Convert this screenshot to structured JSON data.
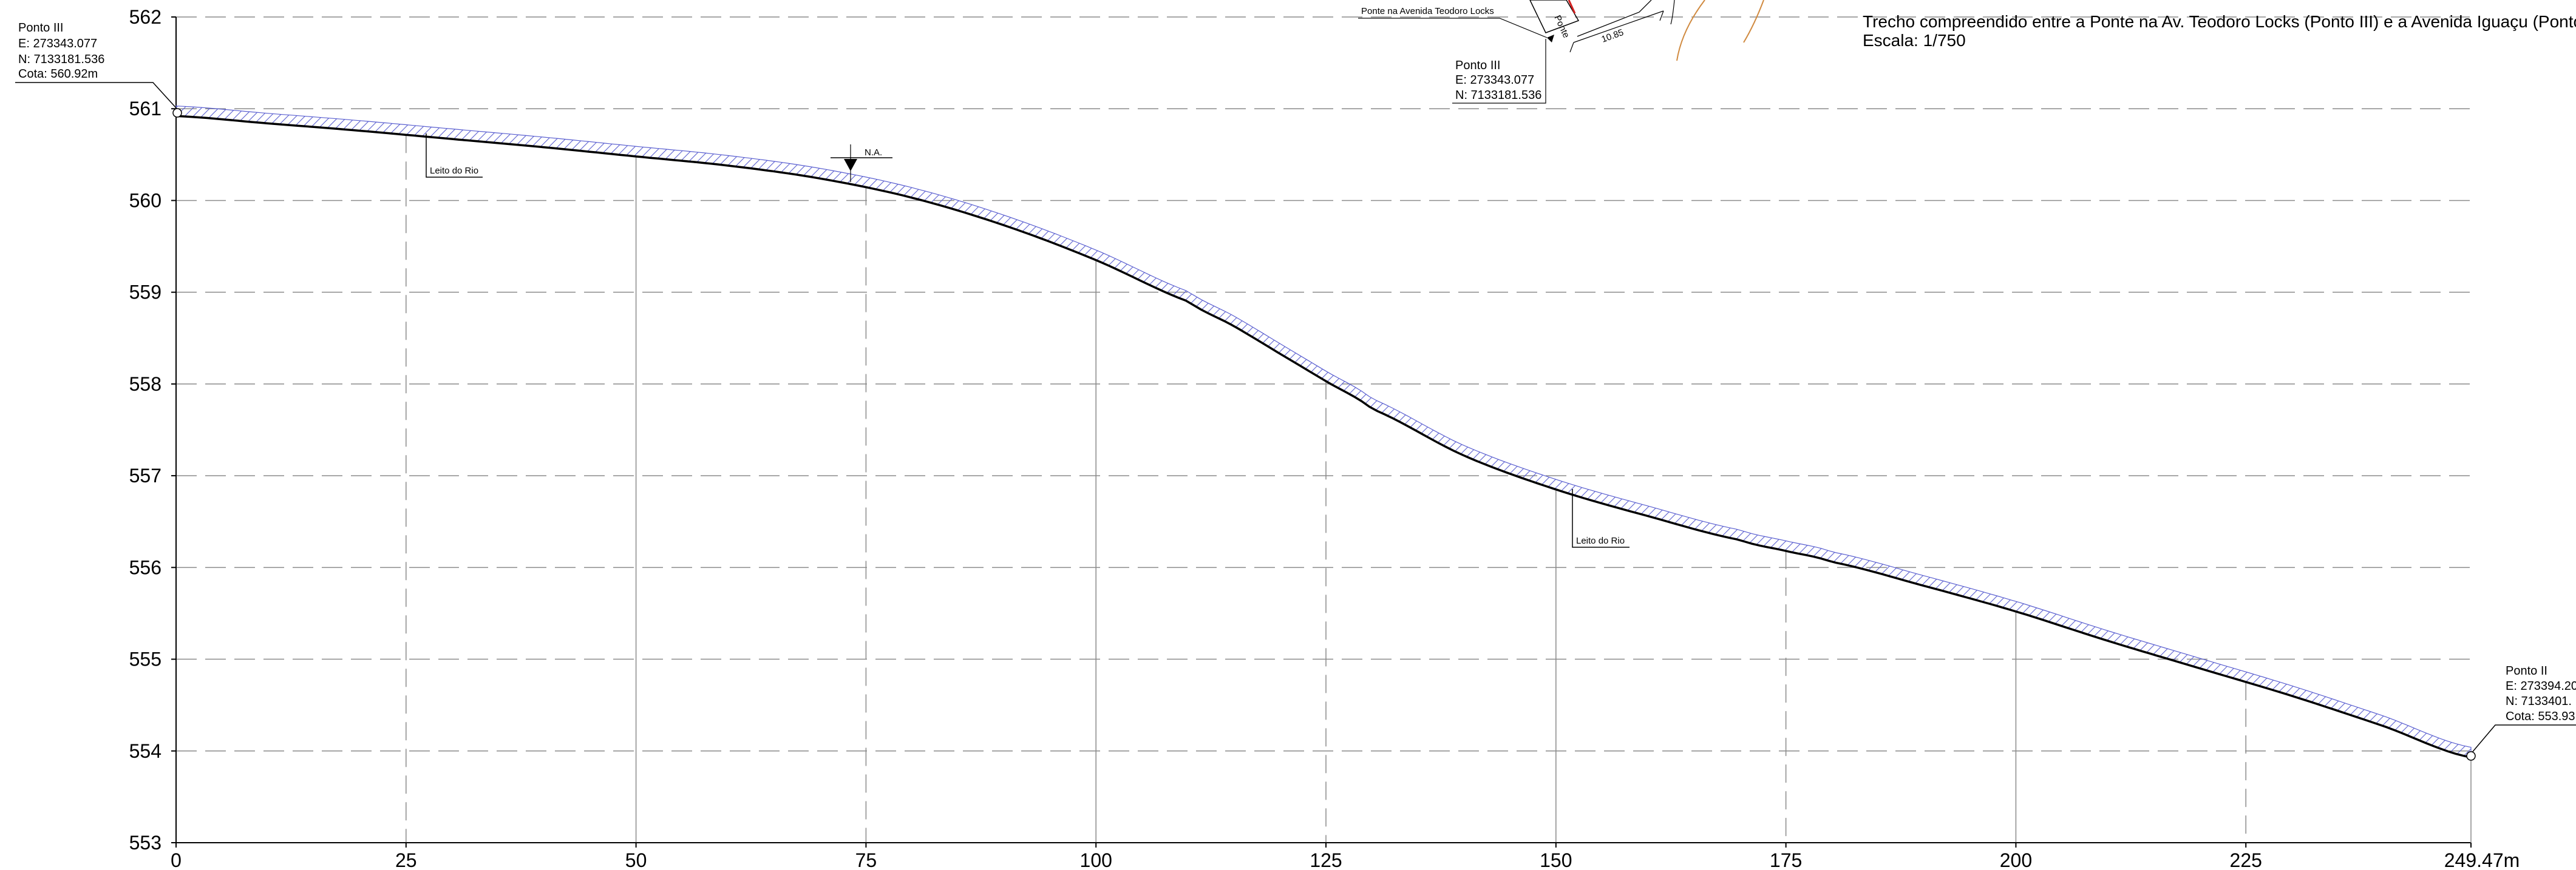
{
  "title": {
    "line1": "Trecho compreendido entre a Ponte na Av. Teodoro Locks (Ponto III) e a Avenida Iguaçu (Ponto II)",
    "line2": "Escala: 1/750"
  },
  "colors": {
    "profile_line": "#000000",
    "hatch": "#5a5fd0",
    "grid": "#8a8a8a",
    "sketch_red": "#d22020",
    "sketch_orange": "#d08a40"
  },
  "chart_data": {
    "type": "line",
    "title": "",
    "xlabel": "",
    "ylabel": "",
    "xlim": [
      0,
      249.47
    ],
    "ylim": [
      553,
      562
    ],
    "x_ticks": [
      0,
      25,
      50,
      75,
      100,
      125,
      150,
      175,
      200,
      225,
      249.47
    ],
    "x_tick_labels": [
      "0",
      "25",
      "50",
      "75",
      "100",
      "125",
      "150",
      "175",
      "200",
      "225",
      "249.47m"
    ],
    "y_ticks": [
      553,
      554,
      555,
      556,
      557,
      558,
      559,
      560,
      561,
      562
    ],
    "y_tick_labels": [
      "553",
      "554",
      "555",
      "556",
      "557",
      "558",
      "559",
      "560",
      "561",
      "562"
    ],
    "grid": true,
    "series": [
      {
        "values_x": [
          0,
          10,
          20,
          30,
          40,
          50,
          60,
          70,
          80,
          90,
          100,
          110,
          115,
          120,
          125,
          130,
          140,
          150,
          160,
          170,
          175,
          180,
          190,
          200,
          210,
          220,
          230,
          240,
          249.47
        ],
        "values_y": [
          560.92,
          560.84,
          560.76,
          560.67,
          560.58,
          560.48,
          560.38,
          560.24,
          560.03,
          559.73,
          559.35,
          558.9,
          558.63,
          558.33,
          558.03,
          557.73,
          557.22,
          556.85,
          556.56,
          556.3,
          556.18,
          556.06,
          555.8,
          555.52,
          555.2,
          554.9,
          554.6,
          554.27,
          553.93
        ]
      }
    ],
    "annotations": [
      {
        "id": "ponto-iii",
        "lines": [
          "Ponto III",
          "E: 273343.077",
          "N: 7133181.536",
          "Cota: 560.92m"
        ]
      },
      {
        "id": "ponto-ii",
        "lines": [
          "Ponto II",
          "E: 273394.20",
          "N: 7133401.",
          "Cota: 553.93"
        ]
      },
      {
        "id": "leito-1",
        "text": "Leito do Rio",
        "x": 27,
        "y": 560.8
      },
      {
        "id": "leito-2",
        "text": "Leito do Rio",
        "x": 152,
        "y": 556.85
      },
      {
        "id": "water-level",
        "text": "N.A.",
        "x": 73.5,
        "y": 560.35
      }
    ]
  },
  "location_sketch": {
    "bridge_label": "Ponte na Avenida Teodoro Locks",
    "ponto_iii_lines": [
      "Ponto III",
      "E: 273343.077",
      "N: 7133181.536"
    ],
    "dimension_label": "10.85",
    "small_label": "Ponte"
  }
}
